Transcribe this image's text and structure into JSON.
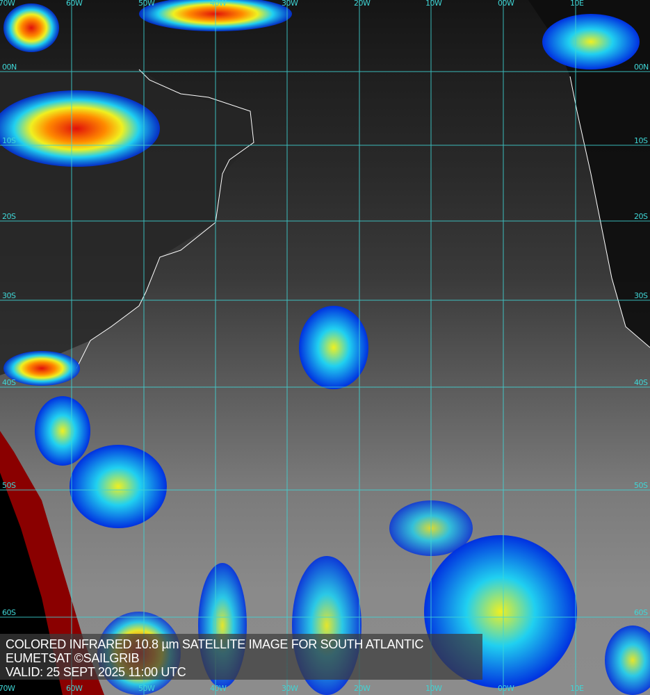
{
  "caption": {
    "line1": "COLORED INFRARED 10.8 µm SATELLITE IMAGE FOR SOUTH ATLANTIC",
    "line2": "EUMETSAT ©SAILGRIB",
    "line3": "VALID:  25 SEPT 2025 11:00 UTC"
  },
  "grid": {
    "longitudes": [
      "70W",
      "60W",
      "50W",
      "40W",
      "30W",
      "20W",
      "10W",
      "00W",
      "10E"
    ],
    "latitudes": [
      "00N",
      "10S",
      "20S",
      "30S",
      "40S",
      "50S",
      "60S"
    ],
    "color": "#3fd6d6"
  },
  "colors": {
    "coast": "#ffffff",
    "cold_red": "#e0100a",
    "orange": "#ff8a00",
    "yellow": "#f0f020",
    "cyan": "#20d0f0",
    "blue": "#0030e0",
    "dark_red_edge": "#8a0000"
  }
}
